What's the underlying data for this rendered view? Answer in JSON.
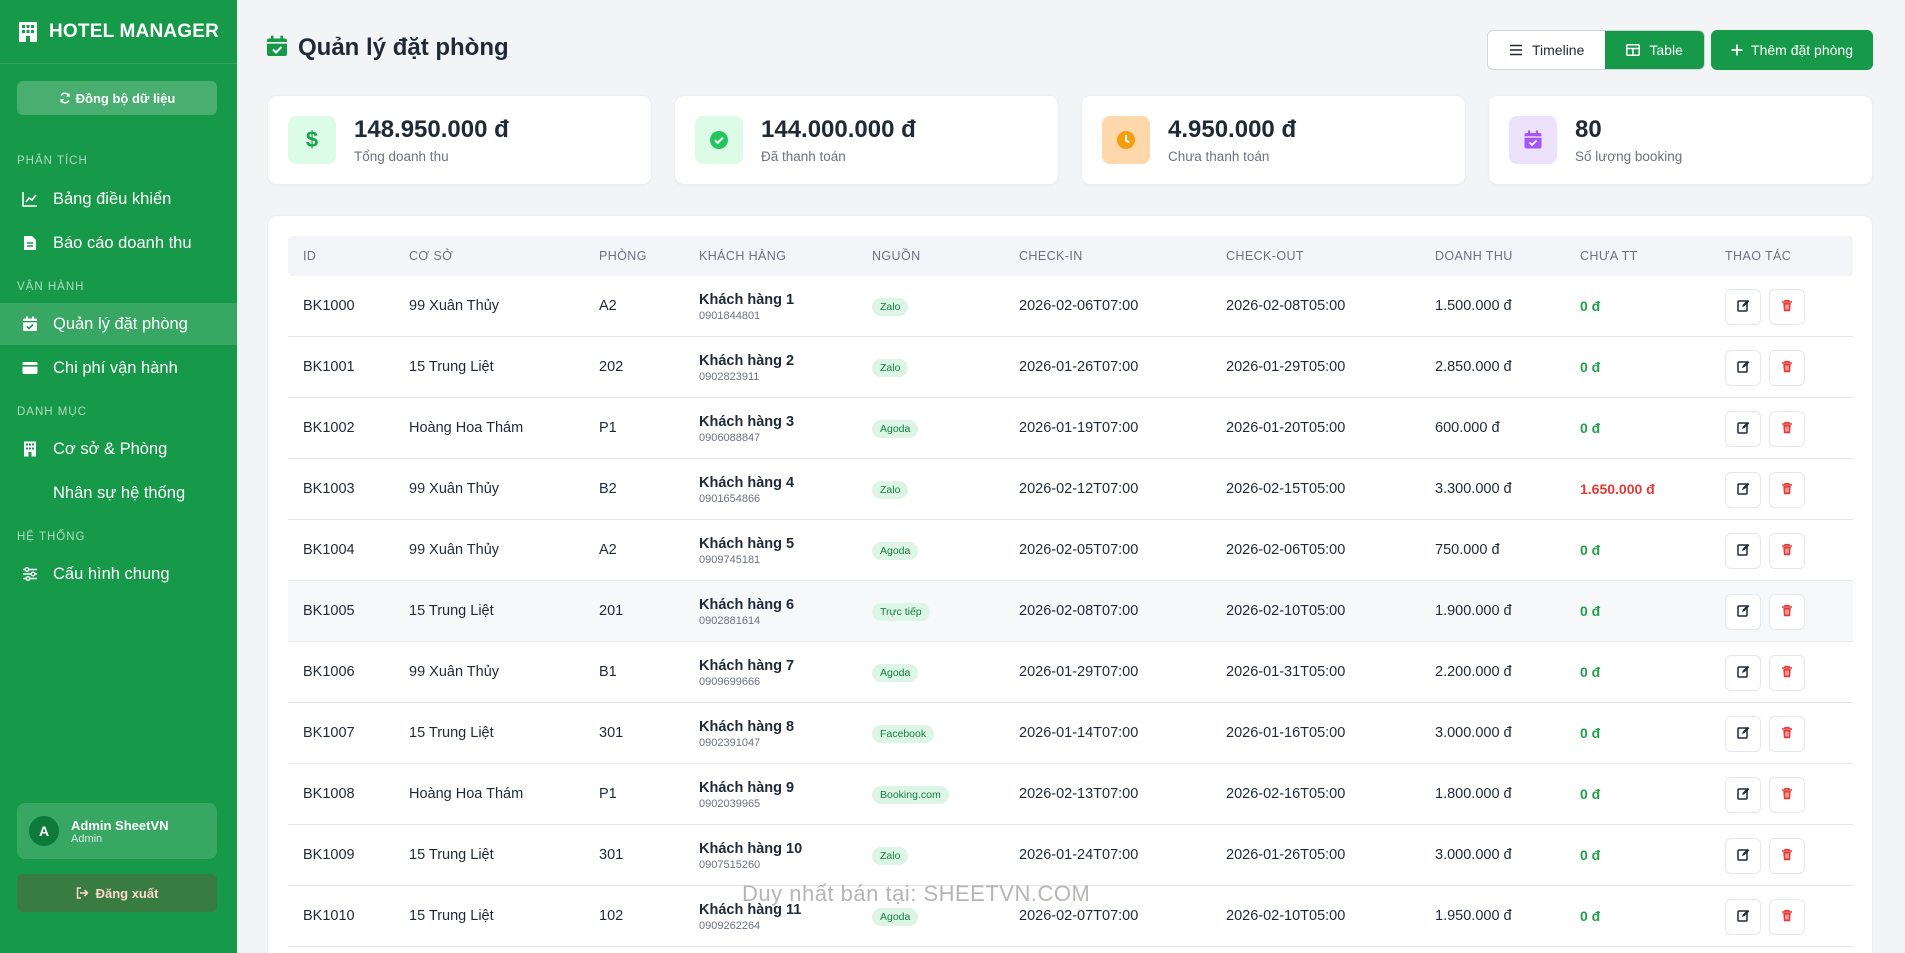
{
  "app": {
    "title": "HOTEL MANAGER",
    "sync_label": "Đồng bộ dữ liệu"
  },
  "nav": {
    "sections": [
      "PHÂN TÍCH",
      "VẬN HÀNH",
      "DANH MỤC",
      "HỆ THỐNG"
    ],
    "items": [
      {
        "label": "Bảng điều khiển",
        "icon": "chart-line-icon"
      },
      {
        "label": "Báo cáo doanh thu",
        "icon": "file-report-icon"
      },
      {
        "label": "Quản lý đặt phòng",
        "icon": "calendar-check-icon",
        "active": true
      },
      {
        "label": "Chi phí vận hành",
        "icon": "wallet-icon"
      },
      {
        "label": "Cơ sở & Phòng",
        "icon": "building-icon"
      },
      {
        "label": "Nhân sự hệ thống",
        "icon": ""
      },
      {
        "label": "Cấu hình chung",
        "icon": "sliders-icon"
      }
    ]
  },
  "user": {
    "initial": "A",
    "name": "Admin SheetVN",
    "role": "Admin",
    "logout_label": "Đăng xuất"
  },
  "header": {
    "title": "Quản lý đặt phòng",
    "view_timeline": "Timeline",
    "view_table": "Table",
    "active_view": "Table",
    "add_label": "Thêm đặt phòng"
  },
  "stats": [
    {
      "value": "148.950.000 đ",
      "label": "Tổng doanh thu",
      "icon": "dollar-icon",
      "bg": "#dcfce7",
      "fg": "#16a34a"
    },
    {
      "value": "144.000.000 đ",
      "label": "Đã thanh toán",
      "icon": "check-circle-icon",
      "bg": "#dcfce7",
      "fg": "#22c55e"
    },
    {
      "value": "4.950.000 đ",
      "label": "Chưa thanh toán",
      "icon": "clock-icon",
      "bg": "#fed7aa",
      "fg": "#f59e0b"
    },
    {
      "value": "80",
      "label": "Số lượng booking",
      "icon": "calendar-check-icon",
      "bg": "#ede2fb",
      "fg": "#a855f7"
    }
  ],
  "table": {
    "columns": [
      "ID",
      "CƠ SỞ",
      "PHÒNG",
      "KHÁCH HÀNG",
      "NGUỒN",
      "CHECK-IN",
      "CHECK-OUT",
      "DOANH THU",
      "CHƯA TT",
      "THAO TÁC"
    ],
    "rows": [
      {
        "id": "BK1000",
        "branch": "99 Xuân Thủy",
        "room": "A2",
        "customer": "Khách hàng 1",
        "phone": "0901844801",
        "source": "Zalo",
        "checkin": "2026-02-06T07:00",
        "checkout": "2026-02-08T05:00",
        "revenue": "1.500.000 đ",
        "unpaid": "0 đ"
      },
      {
        "id": "BK1001",
        "branch": "15 Trung Liệt",
        "room": "202",
        "customer": "Khách hàng 2",
        "phone": "0902823911",
        "source": "Zalo",
        "checkin": "2026-01-26T07:00",
        "checkout": "2026-01-29T05:00",
        "revenue": "2.850.000 đ",
        "unpaid": "0 đ"
      },
      {
        "id": "BK1002",
        "branch": "Hoàng Hoa Thám",
        "room": "P1",
        "customer": "Khách hàng 3",
        "phone": "0906088847",
        "source": "Agoda",
        "checkin": "2026-01-19T07:00",
        "checkout": "2026-01-20T05:00",
        "revenue": "600.000 đ",
        "unpaid": "0 đ"
      },
      {
        "id": "BK1003",
        "branch": "99 Xuân Thủy",
        "room": "B2",
        "customer": "Khách hàng 4",
        "phone": "0901654866",
        "source": "Zalo",
        "checkin": "2026-02-12T07:00",
        "checkout": "2026-02-15T05:00",
        "revenue": "3.300.000 đ",
        "unpaid": "1.650.000 đ"
      },
      {
        "id": "BK1004",
        "branch": "99 Xuân Thủy",
        "room": "A2",
        "customer": "Khách hàng 5",
        "phone": "0909745181",
        "source": "Agoda",
        "checkin": "2026-02-05T07:00",
        "checkout": "2026-02-06T05:00",
        "revenue": "750.000 đ",
        "unpaid": "0 đ"
      },
      {
        "id": "BK1005",
        "branch": "15 Trung Liệt",
        "room": "201",
        "customer": "Khách hàng 6",
        "phone": "0902881614",
        "source": "Trực tiếp",
        "checkin": "2026-02-08T07:00",
        "checkout": "2026-02-10T05:00",
        "revenue": "1.900.000 đ",
        "unpaid": "0 đ"
      },
      {
        "id": "BK1006",
        "branch": "99 Xuân Thủy",
        "room": "B1",
        "customer": "Khách hàng 7",
        "phone": "0909699666",
        "source": "Agoda",
        "checkin": "2026-01-29T07:00",
        "checkout": "2026-01-31T05:00",
        "revenue": "2.200.000 đ",
        "unpaid": "0 đ"
      },
      {
        "id": "BK1007",
        "branch": "15 Trung Liệt",
        "room": "301",
        "customer": "Khách hàng 8",
        "phone": "0902391047",
        "source": "Facebook",
        "checkin": "2026-01-14T07:00",
        "checkout": "2026-01-16T05:00",
        "revenue": "3.000.000 đ",
        "unpaid": "0 đ"
      },
      {
        "id": "BK1008",
        "branch": "Hoàng Hoa Thám",
        "room": "P1",
        "customer": "Khách hàng 9",
        "phone": "0902039965",
        "source": "Booking.com",
        "checkin": "2026-02-13T07:00",
        "checkout": "2026-02-16T05:00",
        "revenue": "1.800.000 đ",
        "unpaid": "0 đ"
      },
      {
        "id": "BK1009",
        "branch": "15 Trung Liệt",
        "room": "301",
        "customer": "Khách hàng 10",
        "phone": "0907515260",
        "source": "Zalo",
        "checkin": "2026-01-24T07:00",
        "checkout": "2026-01-26T05:00",
        "revenue": "3.000.000 đ",
        "unpaid": "0 đ"
      },
      {
        "id": "BK1010",
        "branch": "15 Trung Liệt",
        "room": "102",
        "customer": "Khách hàng 11",
        "phone": "0909262264",
        "source": "Agoda",
        "checkin": "2026-02-07T07:00",
        "checkout": "2026-02-10T05:00",
        "revenue": "1.950.000 đ",
        "unpaid": "0 đ"
      }
    ]
  },
  "watermark": "Duy nhất bán tại: SHEETVN.COM",
  "colors": {
    "brand": "#17994a",
    "paid": "#22a04a",
    "unpaid": "#e53935"
  }
}
